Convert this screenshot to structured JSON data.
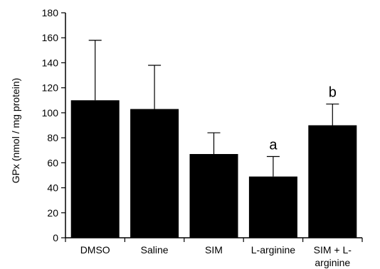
{
  "chart_data": {
    "type": "bar",
    "categories": [
      [
        "DMSO"
      ],
      [
        "Saline"
      ],
      [
        "SIM"
      ],
      [
        "L-arginine"
      ],
      [
        "SIM + L-",
        "arginine"
      ]
    ],
    "values": [
      110,
      103,
      67,
      49,
      90
    ],
    "error_upper": [
      158,
      138,
      84,
      65,
      107
    ],
    "annotations": [
      "",
      "",
      "",
      "a",
      "b"
    ],
    "ylabel": "GPx  (nmol / mg protein)",
    "ylim": [
      0,
      180
    ],
    "yticks": [
      0,
      20,
      40,
      60,
      80,
      100,
      120,
      140,
      160,
      180
    ],
    "grid": false,
    "bar_color": "#000000"
  }
}
